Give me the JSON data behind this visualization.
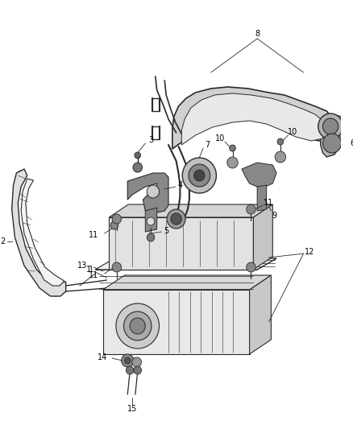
{
  "bg_color": "#ffffff",
  "line_color": "#2a2a2a",
  "text_color": "#000000",
  "fig_width": 4.38,
  "fig_height": 5.33,
  "dpi": 100,
  "label_fs": 7.0
}
